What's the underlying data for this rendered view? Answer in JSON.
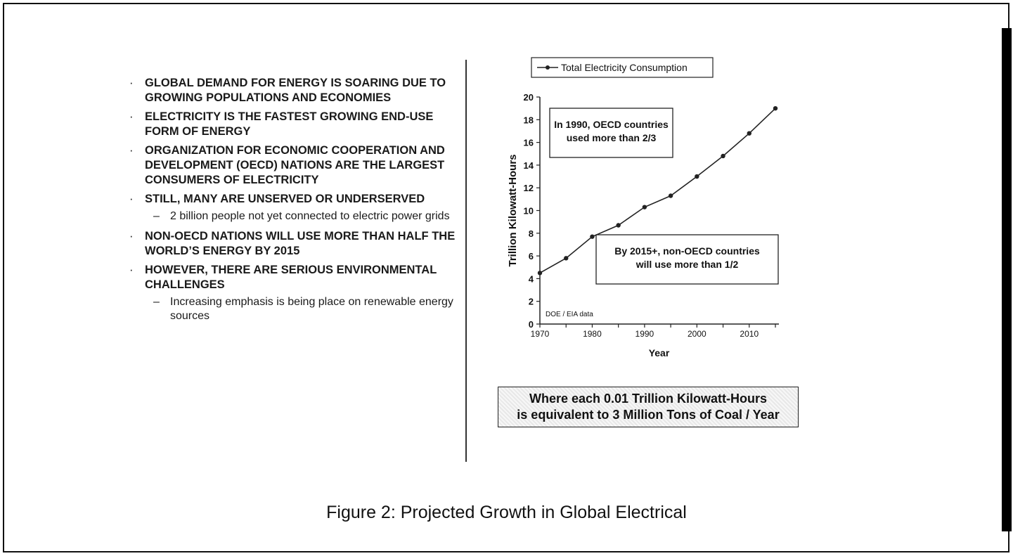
{
  "bullets": [
    {
      "text": "GLOBAL DEMAND FOR ENERGY IS SOARING DUE TO GROWING POPULATIONS AND ECONOMIES"
    },
    {
      "text": "ELECTRICITY IS THE FASTEST GROWING END-USE FORM OF ENERGY"
    },
    {
      "text": "ORGANIZATION FOR ECONOMIC COOPERATION AND DEVELOPMENT (OECD) NATIONS ARE THE LARGEST CONSUMERS OF ELECTRICITY"
    },
    {
      "text": "STILL, MANY ARE UNSERVED OR UNDERSERVED"
    },
    {
      "text": "2 billion people not yet connected to electric power grids"
    },
    {
      "text": "NON-OECD NATIONS WILL USE MORE THAN HALF THE WORLD’S ENERGY BY 2015"
    },
    {
      "text": "HOWEVER, THERE ARE SERIOUS ENVIRONMENTAL CHALLENGES"
    },
    {
      "text": "Increasing emphasis is being place on renewable energy sources"
    }
  ],
  "chart_data": {
    "type": "line",
    "x": [
      1970,
      1975,
      1980,
      1985,
      1990,
      1995,
      2000,
      2005,
      2010,
      2015
    ],
    "series": [
      {
        "name": "Total Electricity Consumption",
        "values": [
          4.5,
          5.8,
          7.7,
          8.7,
          10.3,
          11.3,
          13.0,
          14.8,
          16.8,
          19.0
        ]
      }
    ],
    "xlabel": "Year",
    "ylabel": "Trillion Kilowatt-Hours",
    "xlim": [
      1970,
      2015
    ],
    "ylim": [
      0,
      20
    ],
    "xticks": [
      1970,
      1980,
      1990,
      2000,
      2010
    ],
    "yticks": [
      0,
      2,
      4,
      6,
      8,
      10,
      12,
      14,
      16,
      18,
      20
    ],
    "legend_position": "top",
    "annotations": [
      {
        "lines": [
          "In 1990, OECD countries",
          "used more than 2/3"
        ]
      },
      {
        "lines": [
          "By 2015+, non-OECD countries",
          "will use more than 1/2"
        ]
      }
    ],
    "source": "DOE / EIA data",
    "color": "#222222"
  },
  "note": {
    "line1": "Where each 0.01 Trillion Kilowatt-Hours",
    "line2": "is equivalent to 3 Million Tons of Coal / Year"
  },
  "caption": "Figure 2: Projected Growth in Global Electrical"
}
